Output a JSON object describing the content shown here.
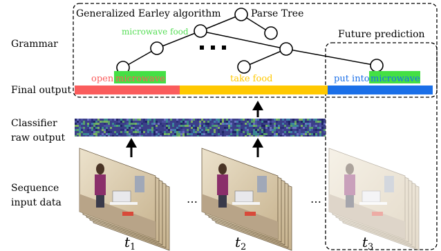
{
  "row_labels": {
    "grammar": "Grammar",
    "final_output": "Final output",
    "classifier_line1": "Classifier",
    "classifier_line2": "raw output",
    "sequence_line1": "Sequence",
    "sequence_line2": "input data"
  },
  "boxes": {
    "earley": "Generalized Earley algorithm",
    "future": "Future prediction"
  },
  "parse_tree": {
    "title": "Parse Tree",
    "node_label": "microwave food",
    "ellipsis": "• • •"
  },
  "segments": [
    {
      "prefix": "open ",
      "highlight": "microwave",
      "color": "#fa5c5c",
      "highlight_bg": "#44e044",
      "highlight_fg": "#fa5c5c"
    },
    {
      "prefix": "take food",
      "highlight": "",
      "color": "#ffc800",
      "highlight_bg": "",
      "highlight_fg": ""
    },
    {
      "prefix": "put into ",
      "highlight": "microwave",
      "color": "#1a6fe8",
      "highlight_bg": "#44e044",
      "highlight_fg": "#1a6fe8"
    }
  ],
  "frames": {
    "t1_base": "t",
    "t1_sub": "1",
    "t2_base": "t",
    "t2_sub": "2",
    "t3_base": "t",
    "t3_sub": "3",
    "ellipsis": "…"
  },
  "colors": {
    "tree_label": "#55dd55",
    "noise_base": "#3b3f88",
    "frame_wall": "#d8c8a8",
    "frame_floor": "#9a8a70"
  }
}
